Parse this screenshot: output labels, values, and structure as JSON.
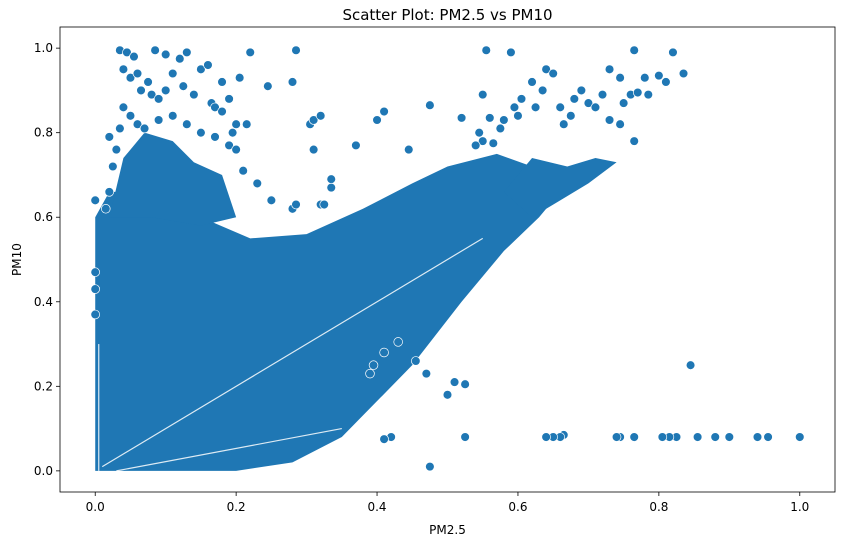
{
  "chart_data": {
    "type": "scatter",
    "title": "Scatter Plot: PM2.5 vs PM10",
    "xlabel": "PM2.5",
    "ylabel": "PM10",
    "xlim": [
      -0.05,
      1.05
    ],
    "ylim": [
      -0.05,
      1.05
    ],
    "xticks": [
      "0.0",
      "0.2",
      "0.4",
      "0.6",
      "0.8",
      "1.0"
    ],
    "yticks": [
      "0.0",
      "0.2",
      "0.4",
      "0.6",
      "0.8",
      "1.0"
    ],
    "grid": false,
    "legend": "none",
    "color": "#1f77b4",
    "points": [
      [
        1.0,
        0.08
      ],
      [
        0.955,
        0.08
      ],
      [
        0.94,
        0.08
      ],
      [
        0.9,
        0.08
      ],
      [
        0.88,
        0.08
      ],
      [
        0.855,
        0.08
      ],
      [
        0.825,
        0.08
      ],
      [
        0.815,
        0.08
      ],
      [
        0.805,
        0.08
      ],
      [
        0.765,
        0.08
      ],
      [
        0.745,
        0.08
      ],
      [
        0.74,
        0.08
      ],
      [
        0.665,
        0.085
      ],
      [
        0.66,
        0.08
      ],
      [
        0.65,
        0.08
      ],
      [
        0.64,
        0.08
      ],
      [
        0.845,
        0.25
      ],
      [
        0.525,
        0.08
      ],
      [
        0.475,
        0.01
      ],
      [
        0.42,
        0.08
      ],
      [
        0.41,
        0.075
      ],
      [
        0.5,
        0.18
      ],
      [
        0.51,
        0.21
      ],
      [
        0.525,
        0.205
      ],
      [
        0.47,
        0.23
      ],
      [
        0.455,
        0.26
      ],
      [
        0.43,
        0.305
      ],
      [
        0.41,
        0.28
      ],
      [
        0.395,
        0.25
      ],
      [
        0.39,
        0.23
      ],
      [
        0.555,
        0.995
      ],
      [
        0.59,
        0.99
      ],
      [
        0.765,
        0.995
      ],
      [
        0.82,
        0.99
      ],
      [
        0.835,
        0.94
      ],
      [
        0.8,
        0.935
      ],
      [
        0.78,
        0.93
      ],
      [
        0.81,
        0.92
      ],
      [
        0.73,
        0.95
      ],
      [
        0.745,
        0.93
      ],
      [
        0.75,
        0.87
      ],
      [
        0.76,
        0.89
      ],
      [
        0.77,
        0.895
      ],
      [
        0.785,
        0.89
      ],
      [
        0.72,
        0.89
      ],
      [
        0.69,
        0.9
      ],
      [
        0.68,
        0.88
      ],
      [
        0.7,
        0.87
      ],
      [
        0.71,
        0.86
      ],
      [
        0.73,
        0.83
      ],
      [
        0.745,
        0.82
      ],
      [
        0.765,
        0.78
      ],
      [
        0.64,
        0.95
      ],
      [
        0.65,
        0.94
      ],
      [
        0.62,
        0.92
      ],
      [
        0.635,
        0.9
      ],
      [
        0.625,
        0.86
      ],
      [
        0.605,
        0.88
      ],
      [
        0.6,
        0.84
      ],
      [
        0.58,
        0.83
      ],
      [
        0.56,
        0.835
      ],
      [
        0.545,
        0.8
      ],
      [
        0.55,
        0.78
      ],
      [
        0.66,
        0.86
      ],
      [
        0.675,
        0.84
      ],
      [
        0.665,
        0.82
      ],
      [
        0.595,
        0.86
      ],
      [
        0.575,
        0.81
      ],
      [
        0.565,
        0.775
      ],
      [
        0.54,
        0.77
      ],
      [
        0.035,
        0.995
      ],
      [
        0.045,
        0.99
      ],
      [
        0.055,
        0.98
      ],
      [
        0.085,
        0.995
      ],
      [
        0.1,
        0.985
      ],
      [
        0.12,
        0.975
      ],
      [
        0.13,
        0.99
      ],
      [
        0.15,
        0.95
      ],
      [
        0.16,
        0.96
      ],
      [
        0.18,
        0.92
      ],
      [
        0.04,
        0.95
      ],
      [
        0.05,
        0.93
      ],
      [
        0.06,
        0.94
      ],
      [
        0.065,
        0.9
      ],
      [
        0.075,
        0.92
      ],
      [
        0.08,
        0.89
      ],
      [
        0.09,
        0.88
      ],
      [
        0.1,
        0.9
      ],
      [
        0.11,
        0.94
      ],
      [
        0.125,
        0.91
      ],
      [
        0.14,
        0.89
      ],
      [
        0.165,
        0.87
      ],
      [
        0.17,
        0.86
      ],
      [
        0.18,
        0.85
      ],
      [
        0.19,
        0.88
      ],
      [
        0.205,
        0.93
      ],
      [
        0.22,
        0.99
      ],
      [
        0.245,
        0.91
      ],
      [
        0.28,
        0.92
      ],
      [
        0.285,
        0.995
      ],
      [
        0.04,
        0.86
      ],
      [
        0.05,
        0.84
      ],
      [
        0.06,
        0.82
      ],
      [
        0.07,
        0.81
      ],
      [
        0.09,
        0.83
      ],
      [
        0.11,
        0.84
      ],
      [
        0.13,
        0.82
      ],
      [
        0.15,
        0.8
      ],
      [
        0.17,
        0.79
      ],
      [
        0.19,
        0.77
      ],
      [
        0.2,
        0.82
      ],
      [
        0.215,
        0.82
      ],
      [
        0.195,
        0.8
      ],
      [
        0.2,
        0.76
      ],
      [
        0.21,
        0.71
      ],
      [
        0.23,
        0.68
      ],
      [
        0.025,
        0.72
      ],
      [
        0.03,
        0.76
      ],
      [
        0.02,
        0.79
      ],
      [
        0.035,
        0.81
      ],
      [
        0.02,
        0.66
      ],
      [
        0.015,
        0.62
      ],
      [
        0.25,
        0.64
      ],
      [
        0.28,
        0.62
      ],
      [
        0.285,
        0.63
      ],
      [
        0.305,
        0.82
      ],
      [
        0.31,
        0.83
      ],
      [
        0.32,
        0.84
      ],
      [
        0.31,
        0.76
      ],
      [
        0.335,
        0.69
      ],
      [
        0.335,
        0.67
      ],
      [
        0.37,
        0.77
      ],
      [
        0.4,
        0.83
      ],
      [
        0.41,
        0.85
      ],
      [
        0.445,
        0.76
      ],
      [
        0.475,
        0.865
      ],
      [
        0.52,
        0.835
      ],
      [
        0.55,
        0.89
      ],
      [
        0.32,
        0.63
      ],
      [
        0.325,
        0.63
      ],
      [
        0.0,
        0.64
      ],
      [
        0.0,
        0.47
      ],
      [
        0.0,
        0.43
      ],
      [
        0.0,
        0.37
      ]
    ]
  }
}
